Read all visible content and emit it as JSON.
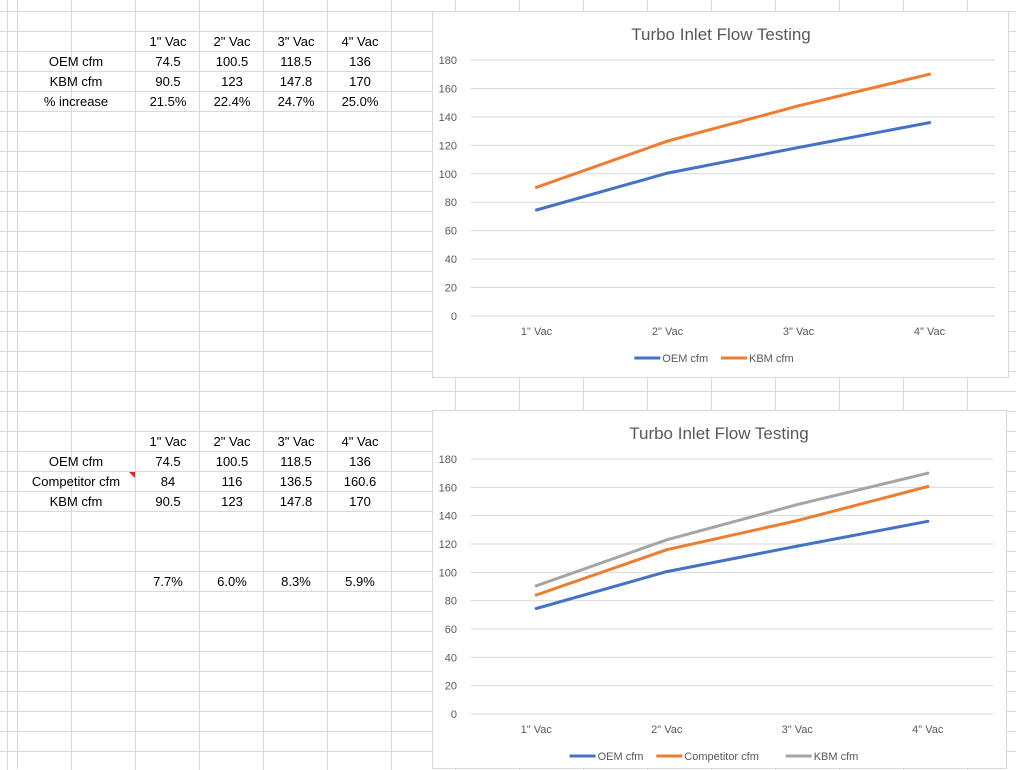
{
  "sheet": {
    "table1": {
      "headers": [
        "1\" Vac",
        "2\" Vac",
        "3\" Vac",
        "4\" Vac"
      ],
      "rows": [
        {
          "label": "OEM cfm",
          "values": [
            "74.5",
            "100.5",
            "118.5",
            "136"
          ]
        },
        {
          "label": "KBM cfm",
          "values": [
            "90.5",
            "123",
            "147.8",
            "170"
          ]
        },
        {
          "label": "% increase",
          "values": [
            "21.5%",
            "22.4%",
            "24.7%",
            "25.0%"
          ]
        }
      ]
    },
    "table2": {
      "headers": [
        "1\" Vac",
        "2\" Vac",
        "3\" Vac",
        "4\" Vac"
      ],
      "rows": [
        {
          "label": "OEM cfm",
          "values": [
            "74.5",
            "100.5",
            "118.5",
            "136"
          ]
        },
        {
          "label": "Competitor cfm",
          "values": [
            "84",
            "116",
            "136.5",
            "160.6"
          ]
        },
        {
          "label": "KBM cfm",
          "values": [
            "90.5",
            "123",
            "147.8",
            "170"
          ]
        }
      ],
      "percent_row": [
        "7.7%",
        "6.0%",
        "8.3%",
        "5.9%"
      ]
    }
  },
  "colors": {
    "oem": "#4472C4",
    "competitor": "#ED7D31",
    "kbm_chart1": "#ED7D31",
    "kbm_chart2": "#A5A5A5",
    "gridline": "#d9d9d9",
    "comment_marker": "#e0201b"
  },
  "chart_data": [
    {
      "type": "line",
      "title": "Turbo Inlet Flow Testing",
      "categories": [
        "1\" Vac",
        "2\" Vac",
        "3\" Vac",
        "4\" Vac"
      ],
      "series": [
        {
          "name": "OEM cfm",
          "values": [
            74.5,
            100.5,
            118.5,
            136
          ],
          "color": "#4472C4"
        },
        {
          "name": "KBM cfm",
          "values": [
            90.5,
            123,
            147.8,
            170
          ],
          "color": "#ED7D31"
        }
      ],
      "yticks": [
        0,
        20,
        40,
        60,
        80,
        100,
        120,
        140,
        160,
        180
      ],
      "ylim": [
        0,
        180
      ],
      "grid": true,
      "legend": "bottom"
    },
    {
      "type": "line",
      "title": "Turbo Inlet Flow Testing",
      "categories": [
        "1\" Vac",
        "2\" Vac",
        "3\" Vac",
        "4\" Vac"
      ],
      "series": [
        {
          "name": "OEM cfm",
          "values": [
            74.5,
            100.5,
            118.5,
            136
          ],
          "color": "#4472C4"
        },
        {
          "name": "Competitor cfm",
          "values": [
            84,
            116,
            136.5,
            160.6
          ],
          "color": "#ED7D31"
        },
        {
          "name": "KBM cfm",
          "values": [
            90.5,
            123,
            147.8,
            170
          ],
          "color": "#A5A5A5"
        }
      ],
      "yticks": [
        0,
        20,
        40,
        60,
        80,
        100,
        120,
        140,
        160,
        180
      ],
      "ylim": [
        0,
        180
      ],
      "grid": true,
      "legend": "bottom"
    }
  ]
}
